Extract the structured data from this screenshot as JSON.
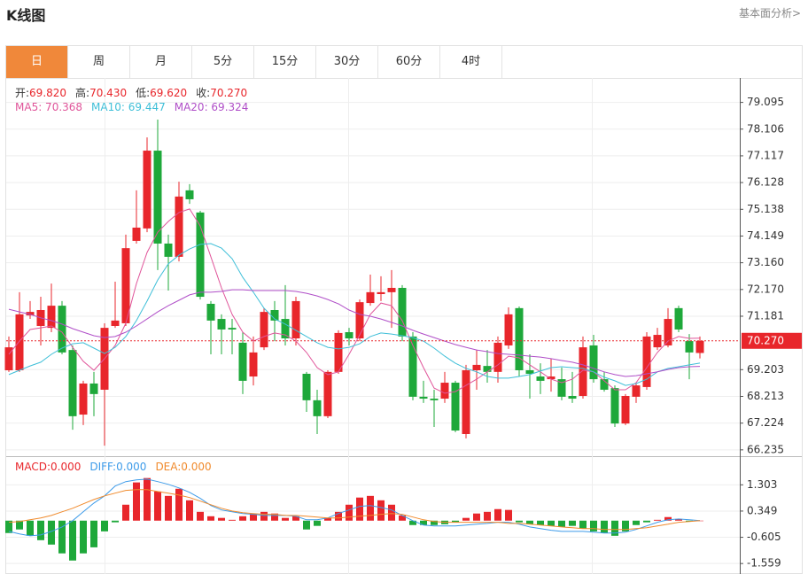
{
  "header": {
    "title": "K线图",
    "link": "基本面分析>"
  },
  "tabs": {
    "items": [
      "日",
      "周",
      "月",
      "5分",
      "15分",
      "30分",
      "60分",
      "4时"
    ],
    "active": 0
  },
  "chart_data": [
    {
      "type": "candlestick",
      "info": [
        {
          "label": "开:",
          "value": "69.820"
        },
        {
          "label": "高:",
          "value": "70.430"
        },
        {
          "label": "低:",
          "value": "69.620"
        },
        {
          "label": "收:",
          "value": "70.270"
        }
      ],
      "info_color": "#e8262b",
      "up_color": "#e8262b",
      "down_color": "#1ea83a",
      "open": [
        69.18,
        69.18,
        71.21,
        70.82,
        70.75,
        71.57,
        69.93,
        67.54,
        68.69,
        68.46,
        70.82,
        70.92,
        73.97,
        74.43,
        77.31,
        73.87,
        73.38,
        75.84,
        75.02,
        71.64,
        71.08,
        70.75,
        70.2,
        68.95,
        70.03,
        71.41,
        71.08,
        70.36,
        69.05,
        68.07,
        67.48,
        69.12,
        70.59,
        70.36,
        71.67,
        72.0,
        72.07,
        72.23,
        70.43,
        68.2,
        68.13,
        68.13,
        68.72,
        66.82,
        69.18,
        69.34,
        69.12,
        70.1,
        71.48,
        69.18,
        68.95,
        68.85,
        68.85,
        68.23,
        68.23,
        70.1,
        68.85,
        68.52,
        67.21,
        68.2,
        68.56,
        70.03,
        70.1,
        71.48,
        70.26,
        69.82
      ],
      "high": [
        70.43,
        72.07,
        71.74,
        71.9,
        72.39,
        71.74,
        70.1,
        68.79,
        69.12,
        70.92,
        72.46,
        74.2,
        75.84,
        77.8,
        78.46,
        74.2,
        76.16,
        76.07,
        75.08,
        71.74,
        71.25,
        71.08,
        70.59,
        70.43,
        71.48,
        71.74,
        72.33,
        71.9,
        69.12,
        68.46,
        69.18,
        70.66,
        70.75,
        71.8,
        72.72,
        72.66,
        72.89,
        72.33,
        70.59,
        68.79,
        68.46,
        69.12,
        68.79,
        69.38,
        69.93,
        69.93,
        70.43,
        71.51,
        71.54,
        69.77,
        69.44,
        69.61,
        69.28,
        69.12,
        70.43,
        70.49,
        69.12,
        68.62,
        68.3,
        68.69,
        70.59,
        70.75,
        71.48,
        71.57,
        70.52,
        70.43
      ],
      "low": [
        69.12,
        69.12,
        71.08,
        70.1,
        70.59,
        69.77,
        66.98,
        67.15,
        67.48,
        66.39,
        70.75,
        70.82,
        73.87,
        74.29,
        72.89,
        72.13,
        73.21,
        75.34,
        71.8,
        69.77,
        69.77,
        69.77,
        68.3,
        68.62,
        69.93,
        70.26,
        70.1,
        70.1,
        67.64,
        66.82,
        67.41,
        69.05,
        70.1,
        70.26,
        71.57,
        71.74,
        70.75,
        70.26,
        68.07,
        67.97,
        67.08,
        67.97,
        66.89,
        66.66,
        68.46,
        68.72,
        68.72,
        69.97,
        68.95,
        68.13,
        68.3,
        68.39,
        68.07,
        67.97,
        68.13,
        68.72,
        68.39,
        67.08,
        67.15,
        67.97,
        68.46,
        69.93,
        70.03,
        70.59,
        68.85,
        69.62
      ],
      "close": [
        70.03,
        71.25,
        71.34,
        71.41,
        71.57,
        69.84,
        67.48,
        68.69,
        68.3,
        70.75,
        71.02,
        73.7,
        74.46,
        77.31,
        73.87,
        73.38,
        75.61,
        75.51,
        71.9,
        71.02,
        70.69,
        70.69,
        68.79,
        69.84,
        71.34,
        71.02,
        70.36,
        71.74,
        68.07,
        67.48,
        69.12,
        70.56,
        70.36,
        71.7,
        72.07,
        72.07,
        72.23,
        70.43,
        68.2,
        68.13,
        68.07,
        68.72,
        66.95,
        69.18,
        69.38,
        69.12,
        70.2,
        71.25,
        69.18,
        69.05,
        68.79,
        68.95,
        68.2,
        68.13,
        70.03,
        68.85,
        68.46,
        67.21,
        68.23,
        68.62,
        70.43,
        70.49,
        71.08,
        70.69,
        69.84,
        70.27
      ],
      "series": [
        {
          "label": "MA5: 70.368",
          "color": "#e0559a",
          "values": [
            69.77,
            70.26,
            70.69,
            70.75,
            70.82,
            70.59,
            70.03,
            69.51,
            69.18,
            69.61,
            70.1,
            70.92,
            72.39,
            73.54,
            74.29,
            74.69,
            75.02,
            75.15,
            74.52,
            73.38,
            72.23,
            71.25,
            70.59,
            70.26,
            70.43,
            70.56,
            70.49,
            70.26,
            69.84,
            69.28,
            69.02,
            69.12,
            69.77,
            70.49,
            71.25,
            71.67,
            71.57,
            71.02,
            70.1,
            69.28,
            68.52,
            68.33,
            68.39,
            68.62,
            68.85,
            69.12,
            69.38,
            69.7,
            69.64,
            69.38,
            69.12,
            68.85,
            68.72,
            68.85,
            69.18,
            69.12,
            68.79,
            68.46,
            68.46,
            68.72,
            69.28,
            69.84,
            70.26,
            70.43,
            70.36,
            70.368
          ]
        },
        {
          "label": "MA10: 69.447",
          "color": "#3fbfd8",
          "values": [
            69.02,
            69.18,
            69.34,
            69.48,
            69.77,
            70.0,
            70.16,
            70.2,
            70.0,
            69.8,
            70.03,
            70.43,
            71.02,
            71.74,
            72.52,
            73.12,
            73.44,
            73.67,
            73.84,
            73.87,
            73.7,
            73.31,
            72.62,
            72.07,
            71.48,
            71.08,
            70.89,
            70.66,
            70.43,
            70.2,
            70.03,
            69.97,
            70.03,
            70.16,
            70.43,
            70.56,
            70.52,
            70.46,
            70.39,
            70.26,
            70.0,
            69.7,
            69.44,
            69.25,
            69.12,
            68.95,
            68.89,
            68.89,
            68.95,
            69.02,
            69.15,
            69.28,
            69.31,
            69.28,
            69.25,
            69.12,
            68.92,
            68.79,
            68.62,
            68.69,
            68.85,
            69.12,
            69.25,
            69.31,
            69.38,
            69.447
          ]
        },
        {
          "label": "MA20: 69.324",
          "color": "#b04fc8",
          "values": [
            71.44,
            71.34,
            71.25,
            71.12,
            71.02,
            70.89,
            70.72,
            70.59,
            70.46,
            70.39,
            70.43,
            70.59,
            70.82,
            71.08,
            71.34,
            71.57,
            71.77,
            71.97,
            72.07,
            72.07,
            72.1,
            72.16,
            72.16,
            72.13,
            72.13,
            72.13,
            72.13,
            72.1,
            72.03,
            71.93,
            71.8,
            71.64,
            71.41,
            71.25,
            71.18,
            71.08,
            70.95,
            70.82,
            70.66,
            70.52,
            70.39,
            70.26,
            70.13,
            70.03,
            69.93,
            69.87,
            69.8,
            69.77,
            69.74,
            69.7,
            69.67,
            69.61,
            69.54,
            69.48,
            69.38,
            69.25,
            69.12,
            69.02,
            68.95,
            68.98,
            69.05,
            69.12,
            69.21,
            69.28,
            69.31,
            69.324
          ]
        }
      ],
      "last_price": {
        "value": 70.27,
        "label": "70.270"
      },
      "ylim": [
        66,
        80
      ],
      "yticks": [
        79.095,
        78.106,
        77.117,
        76.128,
        75.138,
        74.149,
        {
          "value": 73.16,
          "label": "73.160"
        },
        {
          "value": 72.17,
          "label": "72.170"
        },
        71.181,
        69.203,
        68.213,
        67.224,
        66.235
      ],
      "grid": true
    },
    {
      "type": "macd",
      "up_color": "#e8262b",
      "down_color": "#1ea83a",
      "series": [
        {
          "kind": "bar",
          "label": "MACD:0.000",
          "color": "#e8262b",
          "values": [
            -0.45,
            -0.32,
            -0.55,
            -0.71,
            -0.87,
            -1.19,
            -1.45,
            -1.19,
            -0.97,
            -0.39,
            -0.06,
            0.58,
            1.39,
            1.55,
            1.06,
            0.9,
            1.16,
            0.74,
            0.32,
            0.16,
            0.1,
            0.03,
            0.16,
            0.26,
            0.32,
            0.26,
            0.1,
            0.16,
            -0.32,
            -0.19,
            0.1,
            0.32,
            0.58,
            0.84,
            0.9,
            0.74,
            0.58,
            0.19,
            -0.16,
            -0.16,
            -0.16,
            -0.13,
            -0.06,
            0.1,
            0.26,
            0.32,
            0.42,
            0.39,
            -0.06,
            -0.13,
            -0.16,
            -0.19,
            -0.23,
            -0.19,
            -0.29,
            -0.39,
            -0.45,
            -0.55,
            -0.39,
            -0.16,
            -0.06,
            0.03,
            0.13,
            0.06,
            -0.03,
            0
          ]
        },
        {
          "kind": "line",
          "label": "DIFF:0.000",
          "color": "#3d9be9",
          "values": [
            -0.39,
            -0.48,
            -0.55,
            -0.52,
            -0.39,
            -0.23,
            0,
            0.32,
            0.64,
            0.9,
            1.26,
            1.42,
            1.48,
            1.51,
            1.42,
            1.32,
            1.19,
            1.03,
            0.81,
            0.55,
            0.39,
            0.32,
            0.26,
            0.23,
            0.19,
            0.19,
            0.19,
            0.16,
            0.03,
            0.03,
            0.1,
            0.26,
            0.39,
            0.52,
            0.55,
            0.48,
            0.39,
            0.19,
            0,
            -0.16,
            -0.19,
            -0.19,
            -0.19,
            -0.16,
            -0.13,
            -0.1,
            -0.06,
            -0.06,
            -0.13,
            -0.23,
            -0.29,
            -0.35,
            -0.39,
            -0.39,
            -0.39,
            -0.42,
            -0.45,
            -0.45,
            -0.42,
            -0.32,
            -0.19,
            -0.06,
            0.03,
            0.06,
            0.03,
            0
          ]
        },
        {
          "kind": "line",
          "label": "DEA:0.000",
          "color": "#f08a2c",
          "values": [
            -0.06,
            -0.03,
            0.03,
            0.1,
            0.19,
            0.32,
            0.45,
            0.61,
            0.77,
            0.9,
            1.0,
            1.1,
            1.13,
            1.13,
            1.06,
            1.0,
            0.93,
            0.84,
            0.71,
            0.58,
            0.45,
            0.35,
            0.29,
            0.26,
            0.23,
            0.23,
            0.19,
            0.19,
            0.16,
            0.13,
            0.1,
            0.1,
            0.13,
            0.16,
            0.19,
            0.23,
            0.26,
            0.23,
            0.13,
            0.03,
            -0.03,
            -0.06,
            -0.06,
            -0.06,
            -0.06,
            -0.06,
            -0.06,
            -0.1,
            -0.1,
            -0.13,
            -0.16,
            -0.19,
            -0.23,
            -0.26,
            -0.29,
            -0.29,
            -0.32,
            -0.32,
            -0.32,
            -0.29,
            -0.26,
            -0.19,
            -0.13,
            -0.06,
            -0.03,
            0
          ]
        }
      ],
      "ylim": [
        -1.94,
        2.28
      ],
      "yticks": [
        1.303,
        0.349,
        -0.605,
        -1.559
      ],
      "grid": true
    }
  ]
}
